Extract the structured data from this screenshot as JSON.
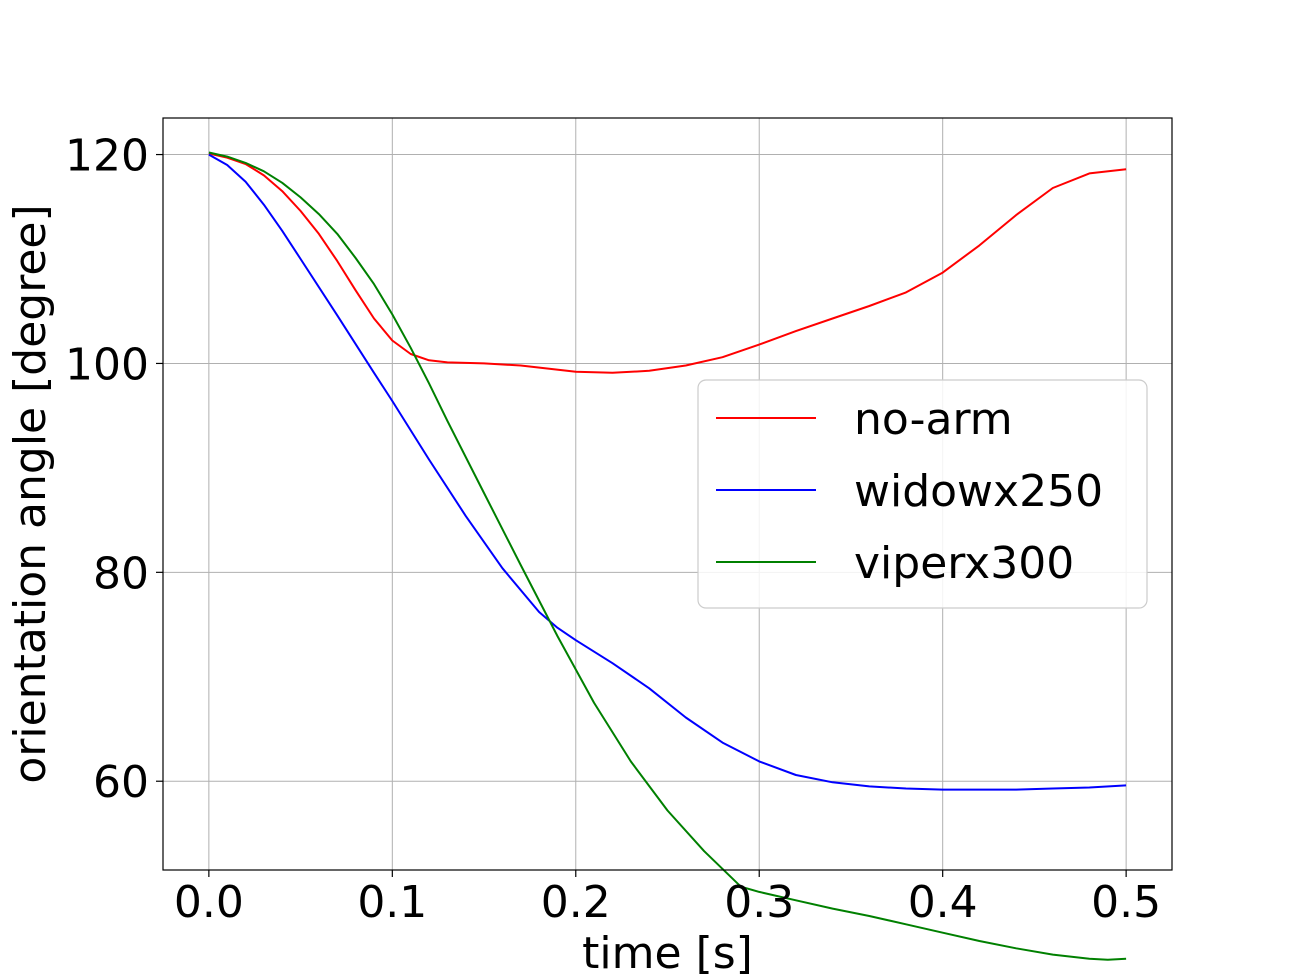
{
  "chart_data": {
    "type": "line",
    "title": "",
    "xlabel": "time [s]",
    "ylabel": "orientation angle [degree]",
    "xlim": [
      -0.025,
      0.525
    ],
    "ylim": [
      51.5,
      123.5
    ],
    "xticks": [
      0.0,
      0.1,
      0.2,
      0.3,
      0.4,
      0.5
    ],
    "xtick_labels": [
      "0.0",
      "0.1",
      "0.2",
      "0.3",
      "0.4",
      "0.5"
    ],
    "yticks": [
      60,
      80,
      100,
      120
    ],
    "ytick_labels": [
      "60",
      "80",
      "100",
      "120"
    ],
    "grid": true,
    "legend_position": "center-right",
    "series": [
      {
        "name": "no-arm",
        "color": "#ff0000",
        "x": [
          0.0,
          0.01,
          0.02,
          0.03,
          0.04,
          0.05,
          0.06,
          0.07,
          0.08,
          0.09,
          0.1,
          0.11,
          0.12,
          0.13,
          0.15,
          0.17,
          0.2,
          0.22,
          0.24,
          0.26,
          0.28,
          0.3,
          0.32,
          0.34,
          0.36,
          0.38,
          0.4,
          0.42,
          0.44,
          0.46,
          0.48,
          0.5
        ],
        "y": [
          120.1,
          119.7,
          119.1,
          118.0,
          116.5,
          114.6,
          112.4,
          109.8,
          107.0,
          104.3,
          102.2,
          100.9,
          100.3,
          100.1,
          100.0,
          99.8,
          99.2,
          99.1,
          99.3,
          99.8,
          100.6,
          101.8,
          103.1,
          104.3,
          105.5,
          106.8,
          108.7,
          111.3,
          114.2,
          116.8,
          118.2,
          118.6
        ]
      },
      {
        "name": "widowx250",
        "color": "#0000ff",
        "x": [
          0.0,
          0.01,
          0.02,
          0.03,
          0.04,
          0.05,
          0.07,
          0.09,
          0.1,
          0.12,
          0.14,
          0.16,
          0.18,
          0.19,
          0.2,
          0.22,
          0.24,
          0.26,
          0.28,
          0.3,
          0.32,
          0.34,
          0.36,
          0.38,
          0.4,
          0.42,
          0.44,
          0.46,
          0.48,
          0.5
        ],
        "y": [
          120.0,
          119.0,
          117.4,
          115.2,
          112.7,
          110.0,
          104.6,
          99.1,
          96.4,
          90.8,
          85.4,
          80.4,
          76.2,
          74.7,
          73.5,
          71.3,
          68.9,
          66.1,
          63.7,
          61.9,
          60.6,
          59.9,
          59.5,
          59.3,
          59.2,
          59.2,
          59.2,
          59.3,
          59.4,
          59.6
        ]
      },
      {
        "name": "viperx300",
        "color": "#008000",
        "x": [
          0.0,
          0.01,
          0.02,
          0.03,
          0.04,
          0.05,
          0.06,
          0.07,
          0.08,
          0.09,
          0.1,
          0.11,
          0.12,
          0.13,
          0.15,
          0.17,
          0.19,
          0.21,
          0.23,
          0.25,
          0.27,
          0.29,
          0.3,
          0.32,
          0.34,
          0.36,
          0.38,
          0.4,
          0.42,
          0.44,
          0.46,
          0.48,
          0.49,
          0.5
        ],
        "y": [
          120.2,
          119.8,
          119.2,
          118.4,
          117.3,
          115.9,
          114.3,
          112.4,
          110.1,
          107.6,
          104.7,
          101.5,
          98.1,
          94.5,
          87.6,
          80.7,
          73.9,
          67.5,
          61.9,
          57.2,
          53.3,
          49.9,
          49.4,
          48.6,
          47.8,
          47.1,
          46.3,
          45.5,
          44.7,
          44.0,
          43.4,
          43.0,
          42.9,
          43.0
        ]
      }
    ]
  }
}
